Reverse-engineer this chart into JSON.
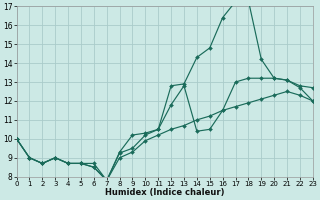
{
  "xlabel": "Humidex (Indice chaleur)",
  "background_color": "#cce9e5",
  "grid_color": "#aaccca",
  "line_color": "#1a6b5a",
  "xlim": [
    0,
    23
  ],
  "ylim": [
    8,
    17
  ],
  "xticks": [
    0,
    1,
    2,
    3,
    4,
    5,
    6,
    7,
    8,
    9,
    10,
    11,
    12,
    13,
    14,
    15,
    16,
    17,
    18,
    19,
    20,
    21,
    22,
    23
  ],
  "yticks": [
    8,
    9,
    10,
    11,
    12,
    13,
    14,
    15,
    16,
    17
  ],
  "series1": [
    10.0,
    9.0,
    8.7,
    9.0,
    8.7,
    8.7,
    8.7,
    7.8,
    9.3,
    10.2,
    10.3,
    10.5,
    12.8,
    12.9,
    14.3,
    14.8,
    16.4,
    17.25,
    17.3,
    14.2,
    13.2,
    13.1,
    12.7,
    12.0
  ],
  "series2": [
    10.0,
    9.0,
    8.7,
    9.0,
    8.7,
    8.7,
    8.5,
    7.8,
    9.25,
    9.5,
    10.2,
    10.5,
    11.8,
    12.8,
    10.4,
    10.5,
    11.5,
    13.0,
    13.2,
    13.2,
    13.2,
    13.1,
    12.8,
    12.7
  ],
  "series3": [
    10.0,
    9.0,
    8.7,
    9.0,
    8.7,
    8.7,
    8.5,
    7.8,
    9.0,
    9.3,
    9.9,
    10.2,
    10.5,
    10.7,
    11.0,
    11.2,
    11.5,
    11.7,
    11.9,
    12.1,
    12.3,
    12.5,
    12.3,
    12.0
  ]
}
